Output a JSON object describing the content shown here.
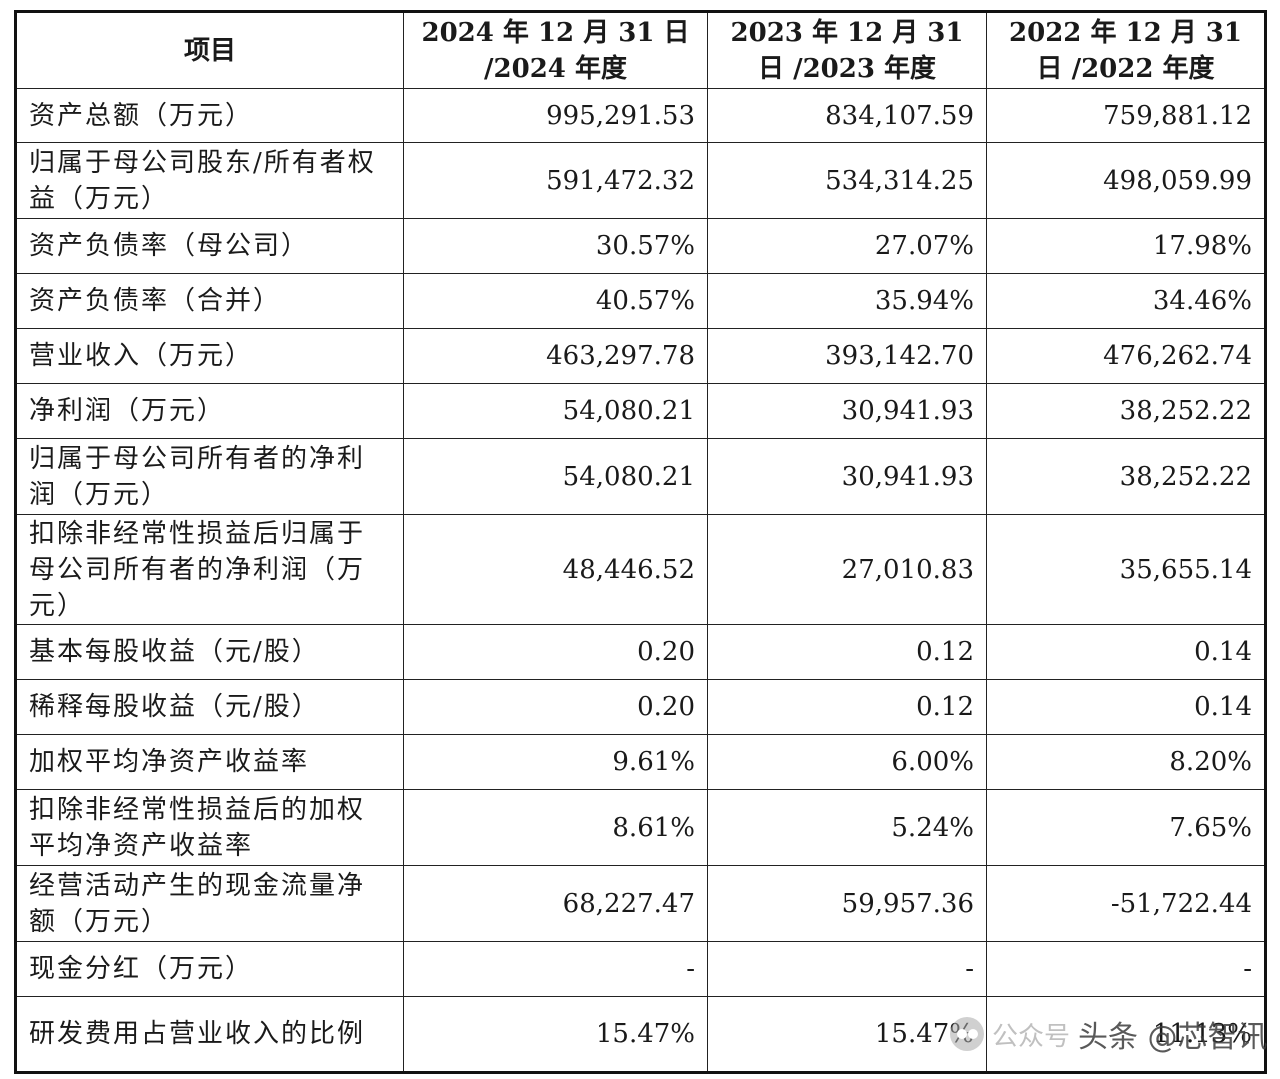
{
  "table": {
    "headers": [
      "项目",
      "2024 年 12 月 31 日 /2024 年度",
      "2023 年 12 月 31 日 /2023 年度",
      "2022 年 12 月 31 日 /2022 年度"
    ],
    "rows": [
      {
        "label": "资产总额（万元）",
        "values": [
          "995,291.53",
          "834,107.59",
          "759,881.12"
        ]
      },
      {
        "label": "归属于母公司股东/所有者权益（万元）",
        "values": [
          "591,472.32",
          "534,314.25",
          "498,059.99"
        ]
      },
      {
        "label": "资产负债率（母公司）",
        "values": [
          "30.57%",
          "27.07%",
          "17.98%"
        ]
      },
      {
        "label": "资产负债率（合并）",
        "values": [
          "40.57%",
          "35.94%",
          "34.46%"
        ]
      },
      {
        "label": "营业收入（万元）",
        "values": [
          "463,297.78",
          "393,142.70",
          "476,262.74"
        ]
      },
      {
        "label": "净利润（万元）",
        "values": [
          "54,080.21",
          "30,941.93",
          "38,252.22"
        ]
      },
      {
        "label": "归属于母公司所有者的净利润（万元）",
        "values": [
          "54,080.21",
          "30,941.93",
          "38,252.22"
        ]
      },
      {
        "label": "扣除非经常性损益后归属于母公司所有者的净利润（万元）",
        "values": [
          "48,446.52",
          "27,010.83",
          "35,655.14"
        ]
      },
      {
        "label": "基本每股收益（元/股）",
        "values": [
          "0.20",
          "0.12",
          "0.14"
        ]
      },
      {
        "label": "稀释每股收益（元/股）",
        "values": [
          "0.20",
          "0.12",
          "0.14"
        ]
      },
      {
        "label": "加权平均净资产收益率",
        "values": [
          "9.61%",
          "6.00%",
          "8.20%"
        ]
      },
      {
        "label": "扣除非经常性损益后的加权平均净资产收益率",
        "values": [
          "8.61%",
          "5.24%",
          "7.65%"
        ]
      },
      {
        "label": "经营活动产生的现金流量净额（万元）",
        "values": [
          "68,227.47",
          "59,957.36",
          "-51,722.44"
        ]
      },
      {
        "label": "现金分红（万元）",
        "values": [
          "-",
          "-",
          "-"
        ]
      },
      {
        "label": "研发费用占营业收入的比例",
        "values": [
          "15.47%",
          "15.47%",
          "11.13%"
        ]
      }
    ]
  },
  "watermark": {
    "prefix": "公众号",
    "text": "头条 @芯智讯"
  }
}
